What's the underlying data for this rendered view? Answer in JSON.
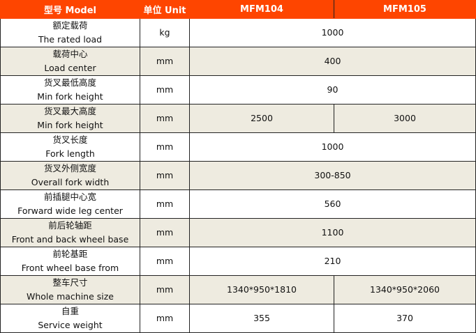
{
  "header": [
    "型号 Model",
    "单位 Unit",
    "MFM104",
    "MFM105"
  ],
  "rows": [
    {
      "zh": "额定载荷",
      "en": "The rated load",
      "unit": "kg",
      "values": [
        "1000"
      ]
    },
    {
      "zh": "载荷中心",
      "en": "Load center",
      "unit": "mm",
      "values": [
        "400"
      ]
    },
    {
      "zh": "货叉最低高度",
      "en": "Min fork height",
      "unit": "mm",
      "values": [
        "90"
      ]
    },
    {
      "zh": "货叉最大高度",
      "en": "Min fork height",
      "unit": "mm",
      "values": [
        "2500",
        "3000"
      ]
    },
    {
      "zh": "货叉长度",
      "en": "Fork length",
      "unit": "mm",
      "values": [
        "1000"
      ]
    },
    {
      "zh": "货叉外侧宽度",
      "en": "Overall fork width",
      "unit": "mm",
      "values": [
        "300-850"
      ]
    },
    {
      "zh": "前插腿中心宽",
      "en": "Forward wide leg center",
      "unit": "mm",
      "values": [
        "560"
      ]
    },
    {
      "zh": "前后轮轴距",
      "en": "Front and back wheel base",
      "unit": "mm",
      "values": [
        "1100"
      ]
    },
    {
      "zh": "前轮基距",
      "en": "Front wheel base from",
      "unit": "mm",
      "values": [
        "210"
      ]
    },
    {
      "zh": "整车尺寸",
      "en": "Whole machine size",
      "unit": "mm",
      "values": [
        "1340*950*1810",
        "1340*950*2060"
      ]
    },
    {
      "zh": "自重",
      "en": "Service weight",
      "unit": "mm",
      "values": [
        "355",
        "370"
      ]
    }
  ]
}
